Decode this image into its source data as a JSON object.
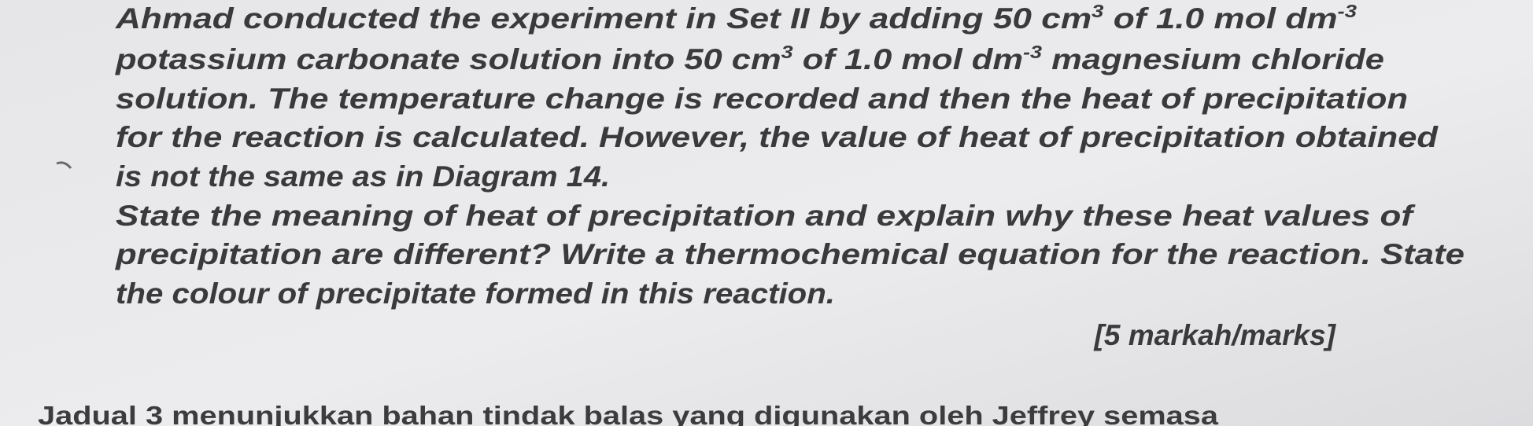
{
  "question": {
    "lines": [
      {
        "runs": [
          {
            "text": "Ahmad conducted the experiment in Set II by adding 50 cm"
          },
          {
            "sup": "3"
          },
          {
            "text": " of 1.0 mol dm"
          },
          {
            "sup": "-3"
          }
        ]
      },
      {
        "runs": [
          {
            "text": "potassium carbonate solution into 50 cm"
          },
          {
            "sup": "3"
          },
          {
            "text": " of 1.0 mol dm"
          },
          {
            "sup": "-3"
          },
          {
            "text": " magnesium chloride"
          }
        ]
      },
      {
        "runs": [
          {
            "text": "solution. The temperature change is recorded and then the heat of precipitation"
          }
        ]
      },
      {
        "runs": [
          {
            "text": "for the reaction is calculated. However, the value of heat of precipitation obtained"
          }
        ]
      },
      {
        "runs": [
          {
            "text": "is not the same as in Diagram 14."
          }
        ]
      },
      {
        "runs": [
          {
            "text": "State the meaning of heat of precipitation and explain why these heat values of"
          }
        ]
      },
      {
        "runs": [
          {
            "text": "precipitation are different? Write a thermochemical equation for the reaction. State"
          }
        ]
      },
      {
        "runs": [
          {
            "text": "the colour of precipitate formed in this reaction."
          }
        ]
      }
    ],
    "marks": "[5 markah/marks]"
  },
  "next_text": "Jadual 3 menunjukkan bahan tindak balas yang digunakan oleh Jeffrey semasa"
}
